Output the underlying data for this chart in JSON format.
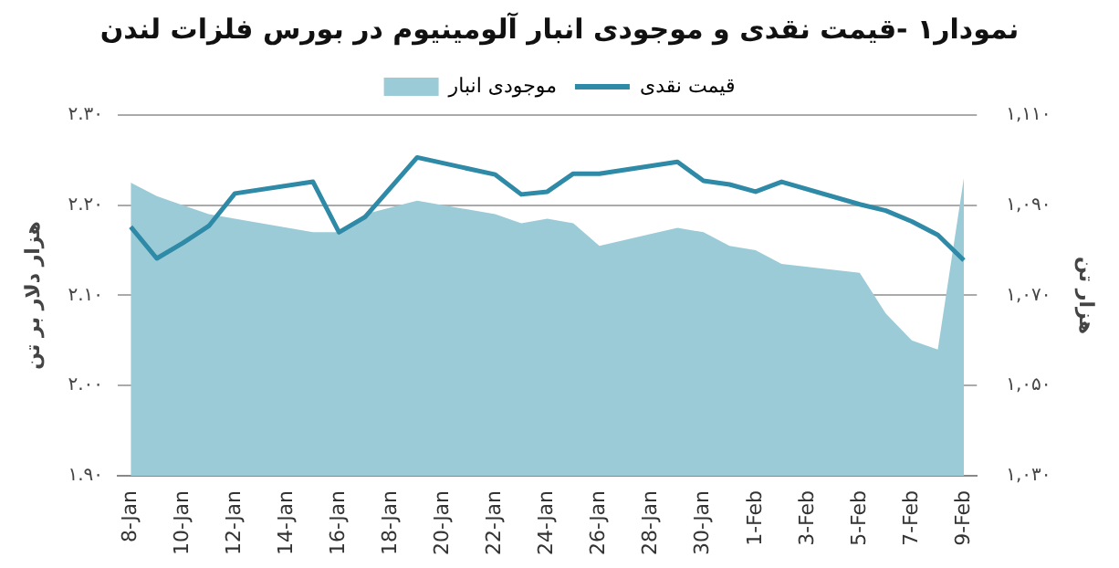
{
  "chart_data": {
    "type": "line",
    "title": "نمودار۱ -قیمت نقدی و موجودی انبار آلومینیوم در بورس فلزات لندن",
    "ylabel": "هزار دلار بر تن",
    "y2label": "هزار تن",
    "xlim": [
      "--01-07T12:00",
      "--02-09T12:00"
    ],
    "xticks": [
      {
        "value": "--01-08",
        "label": "8-Jan"
      },
      {
        "value": "--01-10",
        "label": "10-Jan"
      },
      {
        "value": "--01-12",
        "label": "12-Jan"
      },
      {
        "value": "--01-14",
        "label": "14-Jan"
      },
      {
        "value": "--01-16",
        "label": "16-Jan"
      },
      {
        "value": "--01-18",
        "label": "18-Jan"
      },
      {
        "value": "--01-20",
        "label": "20-Jan"
      },
      {
        "value": "--01-22",
        "label": "22-Jan"
      },
      {
        "value": "--01-24",
        "label": "24-Jan"
      },
      {
        "value": "--01-26",
        "label": "26-Jan"
      },
      {
        "value": "--01-28",
        "label": "28-Jan"
      },
      {
        "value": "--01-30",
        "label": "30-Jan"
      },
      {
        "value": "--02-01",
        "label": "1-Feb"
      },
      {
        "value": "--02-03",
        "label": "3-Feb"
      },
      {
        "value": "--02-05",
        "label": "5-Feb"
      },
      {
        "value": "--02-07",
        "label": "7-Feb"
      },
      {
        "value": "--02-09",
        "label": "9-Feb"
      }
    ],
    "x": [
      "--01-08",
      "--01-09",
      "--01-10",
      "--01-11",
      "--01-12",
      "--01-15",
      "--01-16",
      "--01-17",
      "--01-19",
      "--01-22",
      "--01-23",
      "--01-24",
      "--01-25",
      "--01-26",
      "--01-29",
      "--01-30",
      "--01-31",
      "--02-01",
      "--02-02",
      "--02-05",
      "--02-06",
      "--02-07",
      "--02-08",
      "--02-09"
    ],
    "ylim": [
      1.9,
      2.3
    ],
    "yticks": [
      {
        "value": 1.9,
        "label": "۱.۹۰"
      },
      {
        "value": 2.0,
        "label": "۲.۰۰"
      },
      {
        "value": 2.1,
        "label": "۲.۱۰"
      },
      {
        "value": 2.2,
        "label": "۲.۲۰"
      },
      {
        "value": 2.3,
        "label": "۲.۳۰"
      }
    ],
    "y2lim": [
      1030,
      1110
    ],
    "y2ticks": [
      {
        "value": 1030,
        "label": "۱,۰۳۰"
      },
      {
        "value": 1050,
        "label": "۱,۰۵۰"
      },
      {
        "value": 1070,
        "label": "۱,۰۷۰"
      },
      {
        "value": 1090,
        "label": "۱,۰۹۰"
      },
      {
        "value": 1110,
        "label": "۱,۱۱۰"
      }
    ],
    "series": [
      {
        "name": "قیمت نقدی",
        "color": "#2e8aa6",
        "values": [
          2.176,
          2.141,
          2.158,
          2.177,
          2.213,
          2.226,
          2.17,
          2.187,
          2.253,
          2.234,
          2.212,
          2.215,
          2.235,
          2.235,
          2.248,
          2.227,
          2.223,
          2.215,
          2.226,
          2.201,
          2.194,
          2.182,
          2.167,
          2.139
        ]
      },
      {
        "name": "موجودی انبار",
        "type": "area",
        "axis": "y2",
        "color": "#9ccbd8",
        "values": [
          1095,
          1092,
          1090,
          1088,
          1087,
          1084,
          1084,
          1088,
          1091,
          1088,
          1086,
          1087,
          1086,
          1081,
          1085,
          1084,
          1081,
          1080,
          1077,
          1075,
          1066,
          1060,
          1058,
          1096
        ]
      }
    ],
    "grid": "y",
    "legend": "top",
    "marker": "none",
    "line_style": "solid"
  }
}
